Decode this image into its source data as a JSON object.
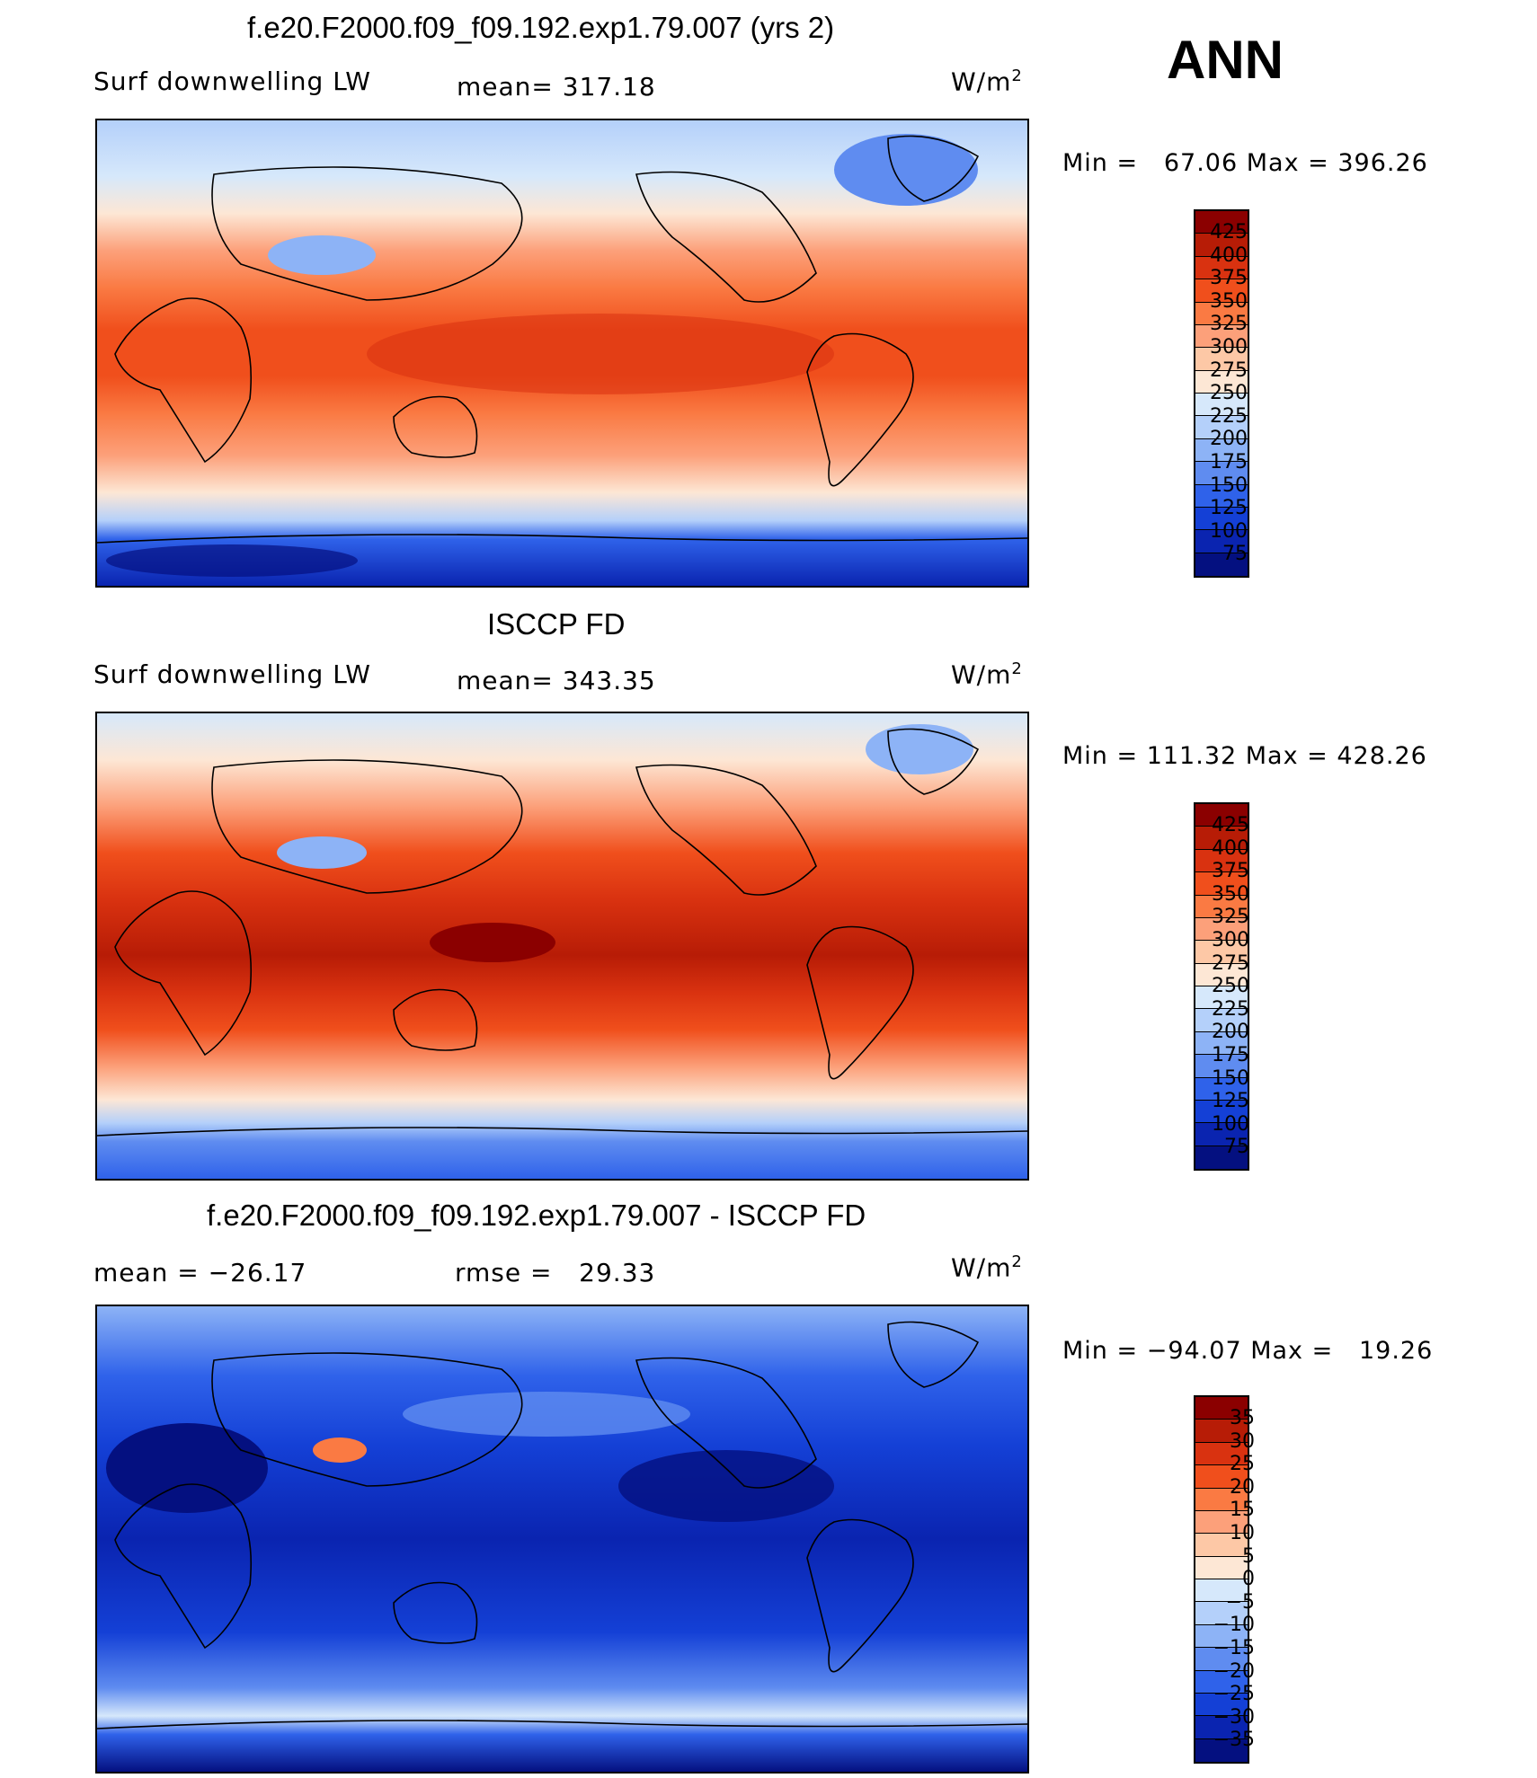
{
  "season": "ANN",
  "units": "W/m",
  "units_sup": "2",
  "panels": [
    {
      "title": "f.e20.F2000.f09_f09.192.exp1.79.007 (yrs 2)",
      "left_label": "Surf downwelling LW",
      "center_label": "mean= 317.18",
      "minmax": "Min =   67.06 Max = 396.26",
      "colorbar_labels": [
        "425",
        "400",
        "375",
        "350",
        "325",
        "300",
        "275",
        "250",
        "225",
        "200",
        "175",
        "150",
        "125",
        "100",
        "75"
      ]
    },
    {
      "title": "ISCCP FD",
      "left_label": "Surf downwelling LW",
      "center_label": "mean= 343.35",
      "minmax": "Min = 111.32 Max = 428.26",
      "colorbar_labels": [
        "425",
        "400",
        "375",
        "350",
        "325",
        "300",
        "275",
        "250",
        "225",
        "200",
        "175",
        "150",
        "125",
        "100",
        "75"
      ]
    },
    {
      "title": "f.e20.F2000.f09_f09.192.exp1.79.007 - ISCCP FD",
      "left_label": "mean = −26.17",
      "center_label": "rmse =   29.33",
      "minmax": "Min = −94.07 Max =   19.26",
      "colorbar_labels": [
        "35",
        "30",
        "25",
        "20",
        "15",
        "10",
        "5",
        "0",
        "−5",
        "−10",
        "−15",
        "−20",
        "−25",
        "−30",
        "−35"
      ]
    }
  ],
  "colorbar_colors": [
    "#8b0000",
    "#b71c06",
    "#d93210",
    "#f04f1c",
    "#fa7a43",
    "#fca07a",
    "#fdc8a6",
    "#fde7d5",
    "#d6e8fb",
    "#b4d0fa",
    "#8db3f6",
    "#5f8cf0",
    "#2f62ea",
    "#1440d6",
    "#0a24b0",
    "#041080"
  ]
}
